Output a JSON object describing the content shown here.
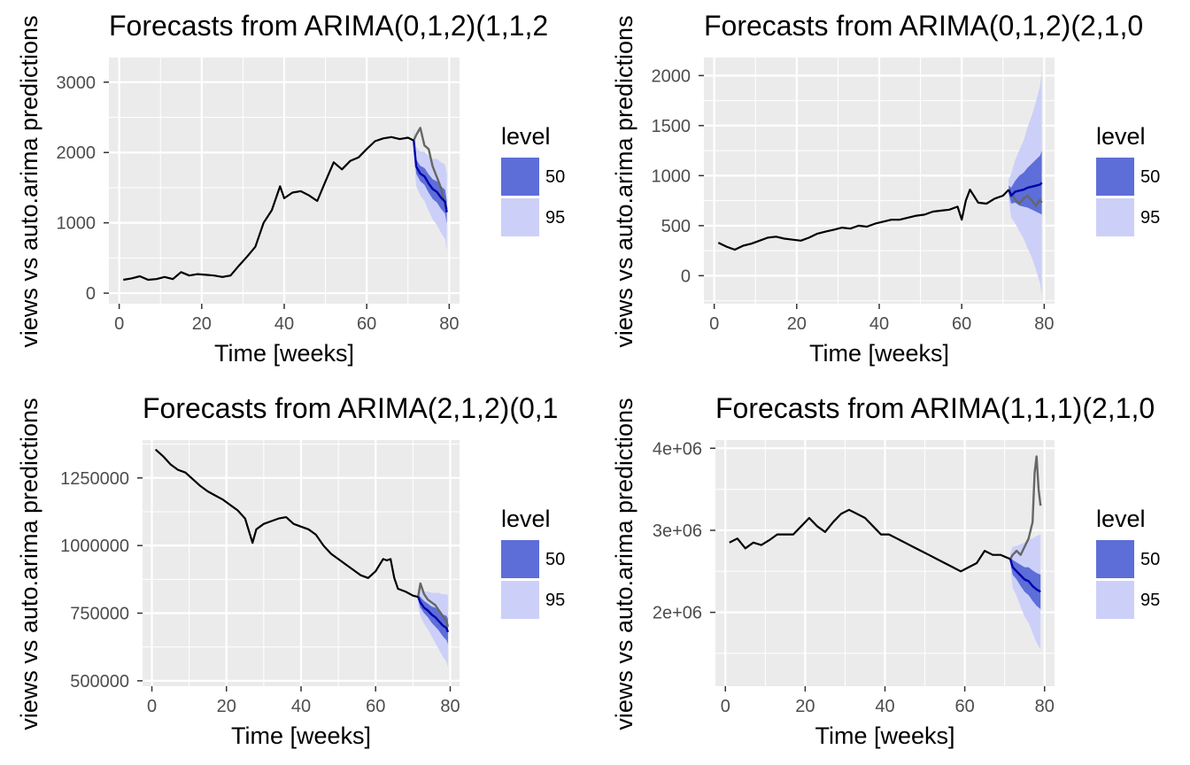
{
  "legend": {
    "title": "level",
    "items": [
      {
        "label": "50",
        "color": "#5d6ed8"
      },
      {
        "label": "95",
        "color": "#ccd0f8"
      }
    ]
  },
  "colors": {
    "panel_bg": "#ebebeb",
    "grid": "#ffffff",
    "observed": "#000000",
    "actual_future": "#666666",
    "forecast_mean": "#0000aa",
    "band_50": "#5d6ed8",
    "band_95": "#ccd0f8"
  },
  "chart_data": [
    {
      "type": "line",
      "title": "Forecasts from ARIMA(0,1,2)(1,1,2",
      "xlabel": "Time [weeks]",
      "ylabel": "views vs auto.arima predictions",
      "xlim": [
        -2.5,
        82.5
      ],
      "ylim": [
        -150,
        3350
      ],
      "xticks": [
        0,
        20,
        40,
        60,
        80
      ],
      "xtick_labels": [
        "0",
        "20",
        "40",
        "60",
        "80"
      ],
      "yticks": [
        0,
        1000,
        2000,
        3000
      ],
      "ytick_labels": [
        "0",
        "1000",
        "2000",
        "3000"
      ],
      "grid": true,
      "legend_position": "right",
      "observed": {
        "x": [
          1,
          3,
          5,
          7,
          9,
          11,
          13,
          15,
          17,
          19,
          21,
          23,
          25,
          27,
          29,
          31,
          33,
          35,
          37,
          39,
          40,
          42,
          44,
          46,
          48,
          50,
          52,
          54,
          56,
          58,
          60,
          62,
          64,
          66,
          68,
          70,
          71.4
        ],
        "y": [
          190,
          210,
          240,
          190,
          200,
          230,
          200,
          300,
          250,
          270,
          260,
          250,
          230,
          250,
          390,
          520,
          660,
          1000,
          1180,
          1520,
          1350,
          1430,
          1450,
          1390,
          1310,
          1590,
          1860,
          1760,
          1880,
          1930,
          2050,
          2160,
          2200,
          2220,
          2190,
          2210,
          2170
        ]
      },
      "actual_future": {
        "x": [
          71.4,
          72,
          73,
          74,
          75,
          76,
          77,
          78,
          79,
          79.4
        ],
        "y": [
          2170,
          2250,
          2350,
          2100,
          2050,
          1800,
          1650,
          1500,
          1250,
          1200
        ]
      },
      "forecast": {
        "x": [
          71.4,
          72,
          73,
          74,
          75,
          76,
          77,
          78,
          79,
          79.4
        ],
        "mean": [
          2170,
          1800,
          1700,
          1660,
          1560,
          1480,
          1440,
          1360,
          1300,
          1150
        ],
        "lo50": [
          2100,
          1700,
          1590,
          1540,
          1430,
          1340,
          1290,
          1200,
          1130,
          980
        ],
        "hi50": [
          2240,
          1900,
          1810,
          1780,
          1690,
          1620,
          1590,
          1520,
          1470,
          1320
        ],
        "lo95": [
          2000,
          1520,
          1390,
          1310,
          1170,
          1050,
          970,
          860,
          770,
          600
        ],
        "hi95": [
          2340,
          2080,
          2010,
          2010,
          1950,
          1910,
          1910,
          1860,
          1830,
          1700
        ]
      }
    },
    {
      "type": "line",
      "title": "Forecasts from ARIMA(0,1,2)(2,1,0",
      "xlabel": "Time [weeks]",
      "ylabel": "views vs auto.arima predictions",
      "xlim": [
        -2.5,
        82.5
      ],
      "ylim": [
        -280,
        2180
      ],
      "xticks": [
        0,
        20,
        40,
        60,
        80
      ],
      "xtick_labels": [
        "0",
        "20",
        "40",
        "60",
        "80"
      ],
      "yticks": [
        0,
        500,
        1000,
        1500,
        2000
      ],
      "ytick_labels": [
        "0",
        "500",
        "1000",
        "1500",
        "2000"
      ],
      "grid": true,
      "legend_position": "right",
      "observed": {
        "x": [
          1,
          3,
          5,
          7,
          9,
          11,
          13,
          15,
          17,
          19,
          21,
          23,
          25,
          27,
          29,
          31,
          33,
          35,
          37,
          39,
          41,
          43,
          45,
          47,
          49,
          51,
          53,
          55,
          57,
          59,
          60,
          61,
          62,
          64,
          66,
          68,
          70,
          71.4
        ],
        "y": [
          330,
          290,
          260,
          300,
          320,
          350,
          380,
          390,
          370,
          360,
          350,
          380,
          420,
          440,
          460,
          480,
          470,
          500,
          490,
          520,
          540,
          560,
          560,
          580,
          600,
          610,
          640,
          650,
          660,
          690,
          560,
          750,
          860,
          730,
          720,
          770,
          800,
          860
        ]
      },
      "actual_future": {
        "x": [
          71.4,
          72,
          73,
          74,
          75,
          76,
          77,
          78,
          79,
          79.4
        ],
        "y": [
          860,
          820,
          760,
          720,
          770,
          800,
          750,
          700,
          760,
          730
        ]
      },
      "forecast": {
        "x": [
          71.4,
          72,
          73,
          74,
          75,
          76,
          77,
          78,
          79,
          79.4
        ],
        "mean": [
          860,
          800,
          840,
          850,
          860,
          880,
          890,
          900,
          910,
          930
        ],
        "lo50": [
          820,
          720,
          730,
          700,
          690,
          680,
          660,
          640,
          620,
          610
        ],
        "hi50": [
          900,
          880,
          950,
          1000,
          1030,
          1080,
          1120,
          1160,
          1200,
          1250
        ],
        "lo95": [
          760,
          580,
          520,
          440,
          370,
          270,
          180,
          60,
          -80,
          -200
        ],
        "hi95": [
          960,
          1020,
          1160,
          1260,
          1350,
          1490,
          1600,
          1740,
          1900,
          2060
        ]
      }
    },
    {
      "type": "line",
      "title": "Forecasts from ARIMA(2,1,2)(0,1",
      "xlabel": "Time [weeks]",
      "ylabel": "views vs auto.arima predictions",
      "xlim": [
        -2.5,
        82.5
      ],
      "ylim": [
        480000,
        1390000
      ],
      "xticks": [
        0,
        20,
        40,
        60,
        80
      ],
      "xtick_labels": [
        "0",
        "20",
        "40",
        "60",
        "80"
      ],
      "yticks": [
        500000,
        750000,
        1000000,
        1250000
      ],
      "ytick_labels": [
        "500000",
        "750000",
        "1000000",
        "1250000"
      ],
      "grid": true,
      "legend_position": "right",
      "observed": {
        "x": [
          1,
          3,
          5,
          7,
          9,
          11,
          13,
          15,
          17,
          19,
          21,
          23,
          25,
          27,
          28,
          30,
          32,
          34,
          36,
          38,
          40,
          42,
          44,
          46,
          48,
          50,
          52,
          54,
          56,
          58,
          60,
          62,
          63,
          64,
          65,
          66,
          68,
          70,
          71.4
        ],
        "y": [
          1355000,
          1330000,
          1300000,
          1280000,
          1270000,
          1245000,
          1220000,
          1200000,
          1185000,
          1170000,
          1150000,
          1130000,
          1100000,
          1010000,
          1060000,
          1080000,
          1090000,
          1100000,
          1105000,
          1080000,
          1070000,
          1060000,
          1040000,
          1000000,
          970000,
          950000,
          930000,
          910000,
          890000,
          880000,
          905000,
          950000,
          945000,
          950000,
          880000,
          840000,
          830000,
          815000,
          810000
        ]
      },
      "actual_future": {
        "x": [
          71.4,
          72,
          73,
          74,
          75,
          76,
          77,
          78,
          79,
          79.4
        ],
        "y": [
          810000,
          860000,
          820000,
          800000,
          790000,
          780000,
          760000,
          740000,
          720000,
          700000
        ]
      },
      "forecast": {
        "x": [
          71.4,
          72,
          73,
          74,
          75,
          76,
          77,
          78,
          79,
          79.4
        ],
        "mean": [
          810000,
          790000,
          770000,
          760000,
          745000,
          735000,
          720000,
          705000,
          695000,
          680000
        ],
        "lo50": [
          800000,
          770000,
          750000,
          735000,
          715000,
          700000,
          685000,
          665000,
          650000,
          635000
        ],
        "hi50": [
          820000,
          810000,
          795000,
          785000,
          775000,
          770000,
          760000,
          745000,
          740000,
          730000
        ],
        "lo95": [
          780000,
          740000,
          710000,
          690000,
          665000,
          640000,
          615000,
          590000,
          570000,
          550000
        ],
        "hi95": [
          840000,
          840000,
          830000,
          830000,
          825000,
          825000,
          825000,
          820000,
          820000,
          815000
        ]
      }
    },
    {
      "type": "line",
      "title": "Forecasts from ARIMA(1,1,1)(2,1,0",
      "xlabel": "Time [weeks]",
      "ylabel": "views vs auto.arima predictions",
      "xlim": [
        -2.5,
        82.5
      ],
      "ylim": [
        1100000,
        4100000
      ],
      "xticks": [
        0,
        20,
        40,
        60,
        80
      ],
      "xtick_labels": [
        "0",
        "20",
        "40",
        "60",
        "80"
      ],
      "yticks": [
        2000000,
        3000000,
        4000000
      ],
      "ytick_labels": [
        "2e+06",
        "3e+06",
        "4e+06"
      ],
      "grid": true,
      "legend_position": "right",
      "observed": {
        "x": [
          1,
          3,
          5,
          7,
          9,
          11,
          13,
          15,
          17,
          19,
          21,
          23,
          25,
          27,
          29,
          31,
          33,
          35,
          37,
          39,
          41,
          43,
          45,
          47,
          49,
          51,
          53,
          55,
          57,
          59,
          61,
          63,
          65,
          67,
          69,
          71.4
        ],
        "y": [
          2850000,
          2900000,
          2780000,
          2850000,
          2820000,
          2880000,
          2950000,
          2950000,
          2950000,
          3050000,
          3150000,
          3050000,
          2980000,
          3100000,
          3200000,
          3250000,
          3200000,
          3150000,
          3050000,
          2950000,
          2950000,
          2900000,
          2850000,
          2800000,
          2750000,
          2700000,
          2650000,
          2600000,
          2550000,
          2500000,
          2550000,
          2600000,
          2750000,
          2700000,
          2700000,
          2650000
        ]
      },
      "actual_future": {
        "x": [
          71.4,
          72,
          73,
          74,
          75,
          76,
          77,
          77.5,
          78,
          78.5,
          79
        ],
        "y": [
          2650000,
          2700000,
          2750000,
          2700000,
          2800000,
          2900000,
          3100000,
          3700000,
          3900000,
          3500000,
          3300000
        ]
      },
      "forecast": {
        "x": [
          71.4,
          72,
          73,
          74,
          75,
          76,
          77,
          78,
          79
        ],
        "mean": [
          2650000,
          2550000,
          2500000,
          2450000,
          2400000,
          2380000,
          2320000,
          2280000,
          2250000
        ],
        "lo50": [
          2620000,
          2460000,
          2400000,
          2320000,
          2250000,
          2210000,
          2140000,
          2080000,
          2040000
        ],
        "hi50": [
          2680000,
          2640000,
          2610000,
          2580000,
          2550000,
          2550000,
          2510000,
          2480000,
          2460000
        ],
        "lo95": [
          2580000,
          2300000,
          2200000,
          2070000,
          1950000,
          1870000,
          1750000,
          1630000,
          1550000
        ],
        "hi95": [
          2720000,
          2800000,
          2810000,
          2830000,
          2850000,
          2890000,
          2900000,
          2930000,
          2950000
        ]
      }
    }
  ]
}
